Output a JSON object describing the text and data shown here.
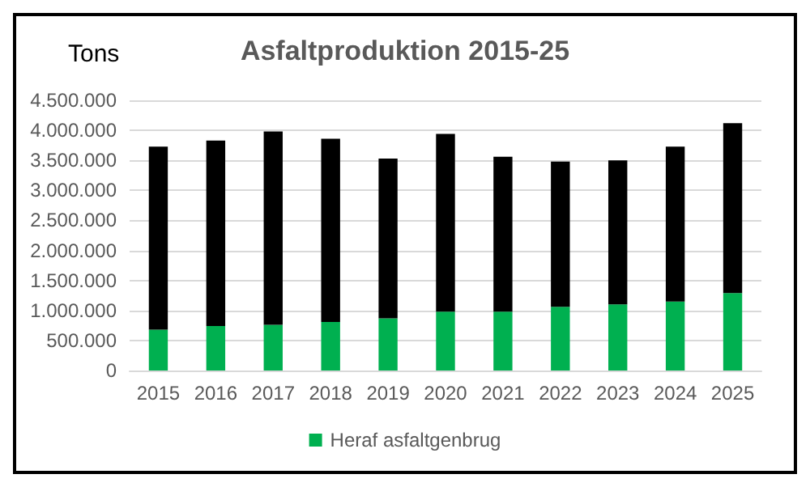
{
  "chart_data": {
    "type": "bar",
    "title": "Asfaltproduktion 2015-25",
    "ylabel": "Tons",
    "stacked": true,
    "categories": [
      "2015",
      "2016",
      "2017",
      "2018",
      "2019",
      "2020",
      "2021",
      "2022",
      "2023",
      "2024",
      "2025"
    ],
    "series": [
      {
        "name": "Heraf asfaltgenbrug",
        "color": "#00b050",
        "values": [
          680000,
          740000,
          760000,
          810000,
          870000,
          980000,
          980000,
          1060000,
          1100000,
          1150000,
          1290000
        ]
      },
      {
        "color": "#000000",
        "values": [
          3050000,
          3090000,
          3220000,
          3050000,
          2660000,
          2960000,
          2580000,
          2420000,
          2400000,
          2580000,
          2830000
        ]
      }
    ],
    "ylim": [
      0,
      4500000
    ],
    "yticks": [
      {
        "value": 0,
        "label": "0"
      },
      {
        "value": 500000,
        "label": "500.000"
      },
      {
        "value": 1000000,
        "label": "1.000.000"
      },
      {
        "value": 1500000,
        "label": "1.500.000"
      },
      {
        "value": 2000000,
        "label": "2.000.000"
      },
      {
        "value": 2500000,
        "label": "2.500.000"
      },
      {
        "value": 3000000,
        "label": "3.000.000"
      },
      {
        "value": 3500000,
        "label": "3.500.000"
      },
      {
        "value": 4000000,
        "label": "4.000.000"
      },
      {
        "value": 4500000,
        "label": "4.500.000"
      }
    ],
    "grid": "y",
    "legend": "bottom"
  }
}
